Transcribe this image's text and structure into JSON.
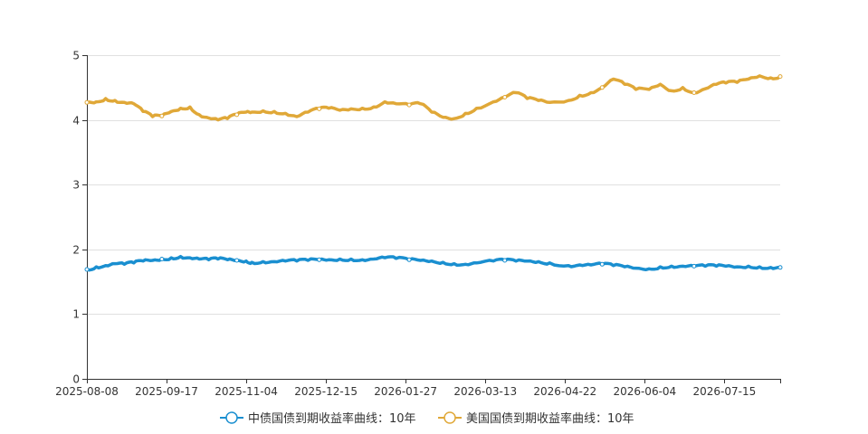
{
  "chart_data": {
    "type": "line",
    "x_tick_labels": [
      "2025-08-08",
      "2025-09-17",
      "2025-11-04",
      "2025-12-15",
      "2026-01-27",
      "2026-03-13",
      "2026-04-22",
      "2026-06-04",
      "2026-07-15"
    ],
    "y_ticks": [
      "0",
      "1",
      "2",
      "3",
      "4",
      "5"
    ],
    "ylim": [
      0,
      5
    ],
    "x_range": [
      "2025-08-08",
      "2026-08-13"
    ],
    "grid": true,
    "legend_position": "bottom-center",
    "series": [
      {
        "name": "中债国债到期收益率曲线：10年",
        "color": "#1a8fd0",
        "x": [
          "2025-08-08",
          "2025-08-13",
          "2025-08-18",
          "2025-08-23",
          "2025-08-28",
          "2025-09-02",
          "2025-09-07",
          "2025-09-12",
          "2025-09-17",
          "2025-09-22",
          "2025-09-27",
          "2025-10-02",
          "2025-10-07",
          "2025-10-12",
          "2025-10-17",
          "2025-10-22",
          "2025-10-27",
          "2025-11-01",
          "2025-11-04",
          "2025-11-10",
          "2025-11-16",
          "2025-11-22",
          "2025-11-28",
          "2025-12-04",
          "2025-12-10",
          "2025-12-15",
          "2025-12-21",
          "2025-12-27",
          "2026-01-02",
          "2026-01-08",
          "2026-01-14",
          "2026-01-20",
          "2026-01-27",
          "2026-02-02",
          "2026-02-08",
          "2026-02-14",
          "2026-02-20",
          "2026-02-26",
          "2026-03-04",
          "2026-03-13",
          "2026-03-19",
          "2026-03-25",
          "2026-03-31",
          "2026-04-06",
          "2026-04-12",
          "2026-04-22",
          "2026-04-28",
          "2026-05-04",
          "2026-05-10",
          "2026-05-16",
          "2026-05-22",
          "2026-05-28",
          "2026-06-04",
          "2026-06-10",
          "2026-06-16",
          "2026-06-22",
          "2026-06-28",
          "2026-07-04",
          "2026-07-10",
          "2026-07-15",
          "2026-07-21",
          "2026-07-27",
          "2026-08-02",
          "2026-08-08",
          "2026-08-13"
        ],
        "values": [
          1.69,
          1.73,
          1.75,
          1.78,
          1.77,
          1.79,
          1.82,
          1.83,
          1.85,
          1.87,
          1.89,
          1.87,
          1.85,
          1.84,
          1.85,
          1.84,
          1.83,
          1.82,
          1.8,
          1.81,
          1.81,
          1.82,
          1.82,
          1.83,
          1.84,
          1.84,
          1.85,
          1.85,
          1.84,
          1.85,
          1.87,
          1.86,
          1.84,
          1.83,
          1.82,
          1.8,
          1.78,
          1.77,
          1.79,
          1.82,
          1.83,
          1.82,
          1.82,
          1.81,
          1.79,
          1.75,
          1.76,
          1.76,
          1.77,
          1.75,
          1.73,
          1.71,
          1.7,
          1.73,
          1.74,
          1.74,
          1.74,
          1.74,
          1.74,
          1.74,
          1.73,
          1.74,
          1.73,
          1.72,
          1.72
        ]
      },
      {
        "name": "美国国债到期收益率曲线：10年",
        "color": "#e0a838",
        "x": [
          "2025-08-08",
          "2025-08-13",
          "2025-08-18",
          "2025-08-23",
          "2025-08-28",
          "2025-09-02",
          "2025-09-07",
          "2025-09-12",
          "2025-09-17",
          "2025-09-22",
          "2025-09-27",
          "2025-10-02",
          "2025-10-07",
          "2025-10-12",
          "2025-10-17",
          "2025-10-22",
          "2025-10-27",
          "2025-11-01",
          "2025-11-04",
          "2025-11-10",
          "2025-11-16",
          "2025-11-22",
          "2025-11-28",
          "2025-12-04",
          "2025-12-10",
          "2025-12-15",
          "2025-12-21",
          "2025-12-27",
          "2026-01-02",
          "2026-01-08",
          "2026-01-14",
          "2026-01-20",
          "2026-01-27",
          "2026-02-02",
          "2026-02-08",
          "2026-02-14",
          "2026-02-20",
          "2026-02-26",
          "2026-03-04",
          "2026-03-13",
          "2026-03-19",
          "2026-03-25",
          "2026-03-31",
          "2026-04-06",
          "2026-04-12",
          "2026-04-22",
          "2026-04-28",
          "2026-05-04",
          "2026-05-10",
          "2026-05-16",
          "2026-05-22",
          "2026-05-28",
          "2026-06-04",
          "2026-06-10",
          "2026-06-16",
          "2026-06-22",
          "2026-06-28",
          "2026-07-04",
          "2026-07-10",
          "2026-07-15",
          "2026-07-21",
          "2026-07-27",
          "2026-08-02",
          "2026-08-08",
          "2026-08-13"
        ],
        "values": [
          4.27,
          4.28,
          4.33,
          4.3,
          4.27,
          4.25,
          4.13,
          4.05,
          4.06,
          4.13,
          4.18,
          4.2,
          4.08,
          4.03,
          4.0,
          4.02,
          4.08,
          4.12,
          4.12,
          4.14,
          4.13,
          4.1,
          4.05,
          4.12,
          4.17,
          4.18,
          4.15,
          4.17,
          4.18,
          4.2,
          4.28,
          4.25,
          4.23,
          4.25,
          4.12,
          4.04,
          4.02,
          4.1,
          4.18,
          4.28,
          4.35,
          4.42,
          4.33,
          4.3,
          4.27,
          4.3,
          4.38,
          4.42,
          4.5,
          4.63,
          4.55,
          4.47,
          4.47,
          4.55,
          4.45,
          4.5,
          4.42,
          4.48,
          4.55,
          4.57,
          4.58,
          4.63,
          4.68,
          4.65,
          4.67
        ]
      }
    ]
  }
}
